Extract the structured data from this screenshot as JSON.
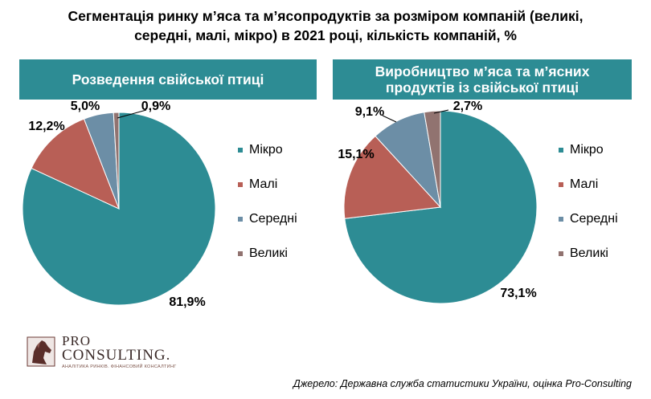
{
  "title": {
    "line1": "Сегментація ринку м’яса та м’ясопродуктів за розміром компаній (великі,",
    "line2": "середні, малі, мікро) в 2021 році, кількість компаній, %"
  },
  "colors": {
    "header_bg": "#2d8c94",
    "micro": "#2d8c94",
    "small": "#b85f56",
    "medium": "#6c8ea6",
    "large": "#917370"
  },
  "chart_data": [
    {
      "type": "pie",
      "title": "Розведення свійської птиці",
      "categories": [
        "Мікро",
        "Малі",
        "Середні",
        "Великі"
      ],
      "values": [
        81.9,
        12.2,
        5.0,
        0.9
      ],
      "value_labels": [
        "81,9%",
        "12,2%",
        "5,0%",
        "0,9%"
      ],
      "legend": "right"
    },
    {
      "type": "pie",
      "title": "Виробництво м’яса та м’ясних продуктів із свійської птиці",
      "title_lines": [
        "Виробництво м’яса та м’ясних",
        "продуктів із свійської птиці"
      ],
      "categories": [
        "Мікро",
        "Малі",
        "Середні",
        "Великі"
      ],
      "values": [
        73.1,
        15.1,
        9.1,
        2.7
      ],
      "value_labels": [
        "73,1%",
        "15,1%",
        "9,1%",
        "2,7%"
      ],
      "legend": "right"
    }
  ],
  "logo": {
    "pro": "PRO",
    "consulting": "CONSULTING.",
    "tagline": "АНАЛІТИКА РИНКІВ. ФІНАНСОВИЙ КОНСАЛТИНГ"
  },
  "source": "Джерело: Державна служба статистики України, оцінка Pro-Consulting"
}
